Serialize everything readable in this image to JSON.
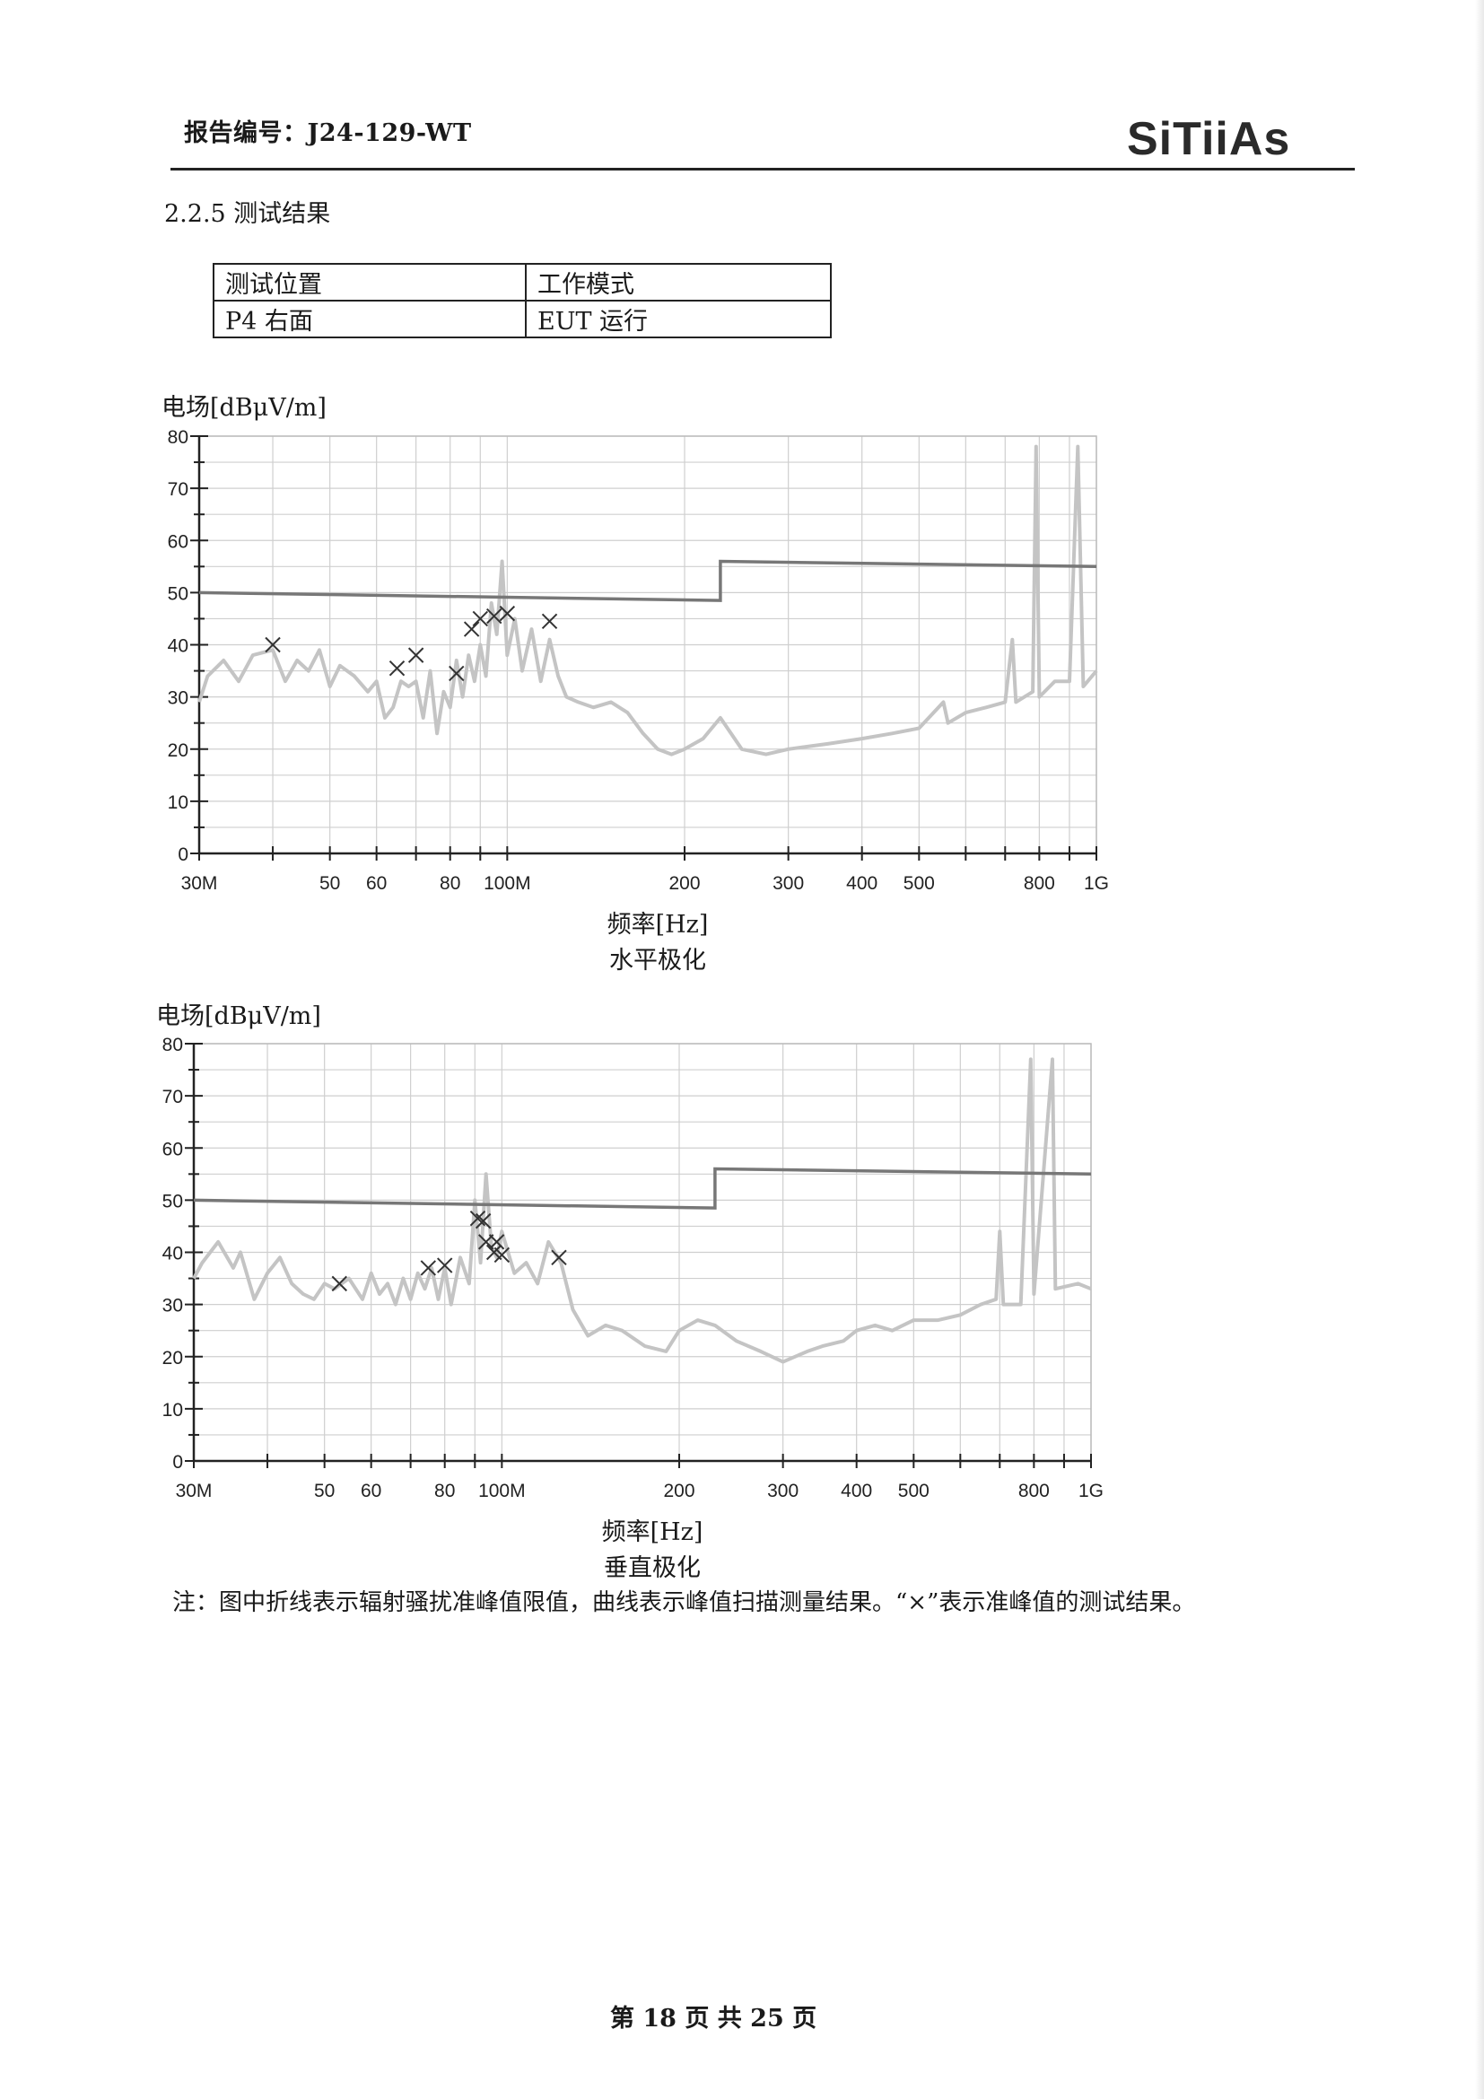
{
  "header": {
    "report_no": "报告编号：J24-129-WT",
    "logo_text": "SiTiiAs"
  },
  "section_title": "2.2.5  测试结果",
  "info_table": {
    "headers": [
      "测试位置",
      "工作模式"
    ],
    "row": [
      "P4  右面",
      "EUT 运行"
    ]
  },
  "chart_data": [
    {
      "type": "line",
      "ylabel": "电场[dBμV/m]",
      "xlabel": "频率[Hz]",
      "subtitle": "水平极化",
      "x_scale": "log",
      "xlim_mhz": [
        30,
        1000
      ],
      "ylim": [
        0,
        80
      ],
      "y_ticks": [
        0,
        10,
        20,
        30,
        40,
        50,
        60,
        70,
        80
      ],
      "x_tick_labels": [
        {
          "f": 30,
          "label": "30M"
        },
        {
          "f": 50,
          "label": "50"
        },
        {
          "f": 60,
          "label": "60"
        },
        {
          "f": 80,
          "label": "80"
        },
        {
          "f": 100,
          "label": "100M"
        },
        {
          "f": 200,
          "label": "200"
        },
        {
          "f": 300,
          "label": "300"
        },
        {
          "f": 400,
          "label": "400"
        },
        {
          "f": 500,
          "label": "500"
        },
        {
          "f": 800,
          "label": "800"
        },
        {
          "f": 1000,
          "label": "1G"
        }
      ],
      "grid": true,
      "limit_line": [
        [
          30,
          50
        ],
        [
          230,
          48.5
        ],
        [
          230,
          56
        ],
        [
          1000,
          55
        ]
      ],
      "quasi_peak_markers_x": [
        {
          "f": 40,
          "v": 40
        },
        {
          "f": 65,
          "v": 35.5
        },
        {
          "f": 70,
          "v": 38
        },
        {
          "f": 82,
          "v": 34.5
        },
        {
          "f": 87,
          "v": 43
        },
        {
          "f": 90,
          "v": 45
        },
        {
          "f": 95,
          "v": 45.5
        },
        {
          "f": 100,
          "v": 46
        },
        {
          "f": 118,
          "v": 44.5
        }
      ],
      "peak_scan": [
        [
          30,
          29
        ],
        [
          31,
          34
        ],
        [
          33,
          37
        ],
        [
          35,
          33
        ],
        [
          37,
          38
        ],
        [
          40,
          39
        ],
        [
          42,
          33
        ],
        [
          44,
          37
        ],
        [
          46,
          35
        ],
        [
          48,
          39
        ],
        [
          50,
          32
        ],
        [
          52,
          36
        ],
        [
          55,
          34
        ],
        [
          58,
          31
        ],
        [
          60,
          33
        ],
        [
          62,
          26
        ],
        [
          64,
          28
        ],
        [
          66,
          33
        ],
        [
          68,
          32
        ],
        [
          70,
          33
        ],
        [
          72,
          26
        ],
        [
          74,
          35
        ],
        [
          76,
          23
        ],
        [
          78,
          31
        ],
        [
          80,
          28
        ],
        [
          82,
          37
        ],
        [
          84,
          30
        ],
        [
          86,
          38
        ],
        [
          88,
          33
        ],
        [
          90,
          40
        ],
        [
          92,
          34
        ],
        [
          94,
          48
        ],
        [
          96,
          42
        ],
        [
          98,
          56
        ],
        [
          100,
          38
        ],
        [
          103,
          45
        ],
        [
          106,
          35
        ],
        [
          110,
          43
        ],
        [
          114,
          33
        ],
        [
          118,
          41
        ],
        [
          122,
          34
        ],
        [
          126,
          30
        ],
        [
          132,
          29
        ],
        [
          140,
          28
        ],
        [
          150,
          29
        ],
        [
          160,
          27
        ],
        [
          170,
          23
        ],
        [
          180,
          20
        ],
        [
          190,
          19
        ],
        [
          200,
          20
        ],
        [
          215,
          22
        ],
        [
          230,
          26
        ],
        [
          250,
          20
        ],
        [
          275,
          19
        ],
        [
          300,
          20
        ],
        [
          350,
          21
        ],
        [
          400,
          22
        ],
        [
          450,
          23
        ],
        [
          500,
          24
        ],
        [
          550,
          29
        ],
        [
          560,
          25
        ],
        [
          600,
          27
        ],
        [
          650,
          28
        ],
        [
          700,
          29
        ],
        [
          720,
          41
        ],
        [
          730,
          29
        ],
        [
          780,
          31
        ],
        [
          790,
          78
        ],
        [
          800,
          30
        ],
        [
          850,
          33
        ],
        [
          900,
          33
        ],
        [
          930,
          78
        ],
        [
          950,
          32
        ],
        [
          1000,
          35
        ]
      ]
    },
    {
      "type": "line",
      "ylabel": "电场[dBμV/m]",
      "xlabel": "频率[Hz]",
      "subtitle": "垂直极化",
      "x_scale": "log",
      "xlim_mhz": [
        30,
        1000
      ],
      "ylim": [
        0,
        80
      ],
      "y_ticks": [
        0,
        10,
        20,
        30,
        40,
        50,
        60,
        70,
        80
      ],
      "x_tick_labels": [
        {
          "f": 30,
          "label": "30M"
        },
        {
          "f": 50,
          "label": "50"
        },
        {
          "f": 60,
          "label": "60"
        },
        {
          "f": 80,
          "label": "80"
        },
        {
          "f": 100,
          "label": "100M"
        },
        {
          "f": 200,
          "label": "200"
        },
        {
          "f": 300,
          "label": "300"
        },
        {
          "f": 400,
          "label": "400"
        },
        {
          "f": 500,
          "label": "500"
        },
        {
          "f": 800,
          "label": "800"
        },
        {
          "f": 1000,
          "label": "1G"
        }
      ],
      "grid": true,
      "limit_line": [
        [
          30,
          50
        ],
        [
          230,
          48.5
        ],
        [
          230,
          56
        ],
        [
          1000,
          55
        ]
      ],
      "quasi_peak_markers_x": [
        {
          "f": 53,
          "v": 34
        },
        {
          "f": 75,
          "v": 37
        },
        {
          "f": 80,
          "v": 37.5
        },
        {
          "f": 91,
          "v": 46.5
        },
        {
          "f": 93,
          "v": 46
        },
        {
          "f": 94,
          "v": 42
        },
        {
          "f": 97,
          "v": 40
        },
        {
          "f": 98,
          "v": 42
        },
        {
          "f": 100,
          "v": 39.5
        },
        {
          "f": 125,
          "v": 39
        }
      ],
      "peak_scan": [
        [
          30,
          35
        ],
        [
          31,
          38
        ],
        [
          33,
          42
        ],
        [
          35,
          37
        ],
        [
          36,
          40
        ],
        [
          38,
          31
        ],
        [
          40,
          36
        ],
        [
          42,
          39
        ],
        [
          44,
          34
        ],
        [
          46,
          32
        ],
        [
          48,
          31
        ],
        [
          50,
          34
        ],
        [
          52,
          33
        ],
        [
          55,
          35
        ],
        [
          58,
          31
        ],
        [
          60,
          36
        ],
        [
          62,
          32
        ],
        [
          64,
          34
        ],
        [
          66,
          30
        ],
        [
          68,
          35
        ],
        [
          70,
          31
        ],
        [
          72,
          36
        ],
        [
          74,
          33
        ],
        [
          76,
          37
        ],
        [
          78,
          31
        ],
        [
          80,
          37
        ],
        [
          82,
          30
        ],
        [
          85,
          39
        ],
        [
          88,
          34
        ],
        [
          90,
          50
        ],
        [
          92,
          38
        ],
        [
          94,
          55
        ],
        [
          96,
          41
        ],
        [
          98,
          39
        ],
        [
          100,
          44
        ],
        [
          105,
          36
        ],
        [
          110,
          38
        ],
        [
          115,
          34
        ],
        [
          120,
          42
        ],
        [
          126,
          38
        ],
        [
          132,
          29
        ],
        [
          140,
          24
        ],
        [
          150,
          26
        ],
        [
          160,
          25
        ],
        [
          175,
          22
        ],
        [
          190,
          21
        ],
        [
          200,
          25
        ],
        [
          215,
          27
        ],
        [
          230,
          26
        ],
        [
          250,
          23
        ],
        [
          275,
          21
        ],
        [
          300,
          19
        ],
        [
          330,
          21
        ],
        [
          350,
          22
        ],
        [
          380,
          23
        ],
        [
          400,
          25
        ],
        [
          430,
          26
        ],
        [
          460,
          25
        ],
        [
          500,
          27
        ],
        [
          550,
          27
        ],
        [
          600,
          28
        ],
        [
          650,
          30
        ],
        [
          690,
          31
        ],
        [
          700,
          44
        ],
        [
          710,
          30
        ],
        [
          760,
          30
        ],
        [
          790,
          77
        ],
        [
          800,
          32
        ],
        [
          860,
          77
        ],
        [
          870,
          33
        ],
        [
          950,
          34
        ],
        [
          1000,
          33
        ]
      ]
    }
  ],
  "note": "注：图中折线表示辐射骚扰准峰值限值，曲线表示峰值扫描测量结果。“×”表示准峰值的测试结果。",
  "footer": "第 18 页   共 25 页"
}
